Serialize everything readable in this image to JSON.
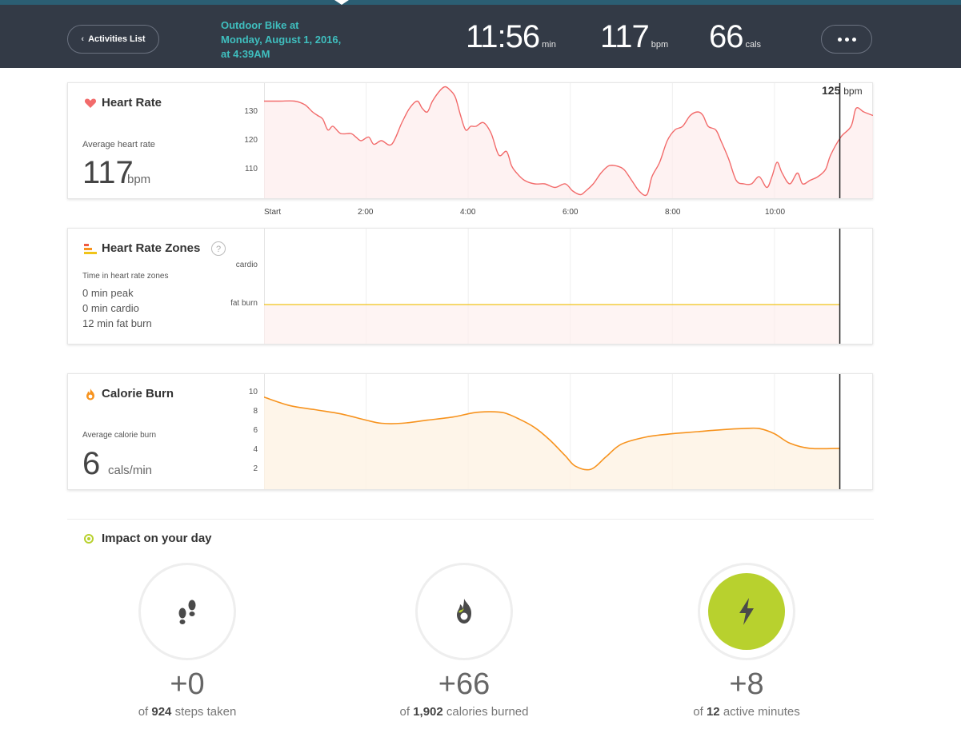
{
  "header": {
    "back_label": "Activities List",
    "title_line1": "Outdoor Bike at",
    "title_line2": "Monday, August 1, 2016,",
    "title_line3": "at 4:39AM",
    "duration": {
      "value": "11:56",
      "unit": "min"
    },
    "heart_rate": {
      "value": "117",
      "unit": "bpm"
    },
    "calories": {
      "value": "66",
      "unit": "cals"
    }
  },
  "heart_rate_card": {
    "title": "Heart Rate",
    "avg_label": "Average heart rate",
    "avg_value": "117",
    "avg_unit": "bpm",
    "y_ticks": [
      "130",
      "120",
      "110"
    ],
    "cursor_value": "125",
    "cursor_unit": "bpm",
    "x_ticks": [
      "Start",
      "2:00",
      "4:00",
      "6:00",
      "8:00",
      "10:00"
    ]
  },
  "zones_card": {
    "title": "Heart Rate Zones",
    "help": "?",
    "subtitle": "Time in heart rate zones",
    "lines": [
      "0 min peak",
      "0 min cardio",
      "12 min fat burn"
    ],
    "y_ticks": [
      "cardio",
      "fat burn"
    ]
  },
  "calorie_card": {
    "title": "Calorie Burn",
    "avg_label": "Average calorie burn",
    "avg_value": "6",
    "avg_unit": "cals/min",
    "y_ticks": [
      "10",
      "8",
      "6",
      "4",
      "2"
    ]
  },
  "impact": {
    "title": "Impact on your day",
    "items": [
      {
        "value": "+0",
        "prefix": "of",
        "total": "924",
        "suffix": "steps taken"
      },
      {
        "value": "+66",
        "prefix": "of",
        "total": "1,902",
        "suffix": "calories burned"
      },
      {
        "value": "+8",
        "prefix": "of",
        "total": "12",
        "suffix": "active minutes"
      }
    ]
  },
  "colors": {
    "header_bg": "#333a46",
    "title_teal": "#3fbfbf",
    "heart_line": "#f26b6b",
    "zone_line": "#f0c419",
    "calorie_line": "#f7931e",
    "active_green": "#b8d12e"
  },
  "chart_data": [
    {
      "type": "line",
      "name": "heart rate",
      "x_unit": "minutes",
      "xlim": [
        0,
        11.93
      ],
      "ylim": [
        103,
        135
      ],
      "x_ticks": [
        "Start",
        "2:00",
        "4:00",
        "6:00",
        "8:00",
        "10:00"
      ],
      "y_ticks": [
        110,
        120,
        130
      ],
      "cursor": {
        "x": 11.28,
        "y": 125
      },
      "x": [
        0,
        0.3,
        0.6,
        0.8,
        0.95,
        1.05,
        1.15,
        1.25,
        1.35,
        1.5,
        1.7,
        1.8,
        1.9,
        2.05,
        2.15,
        2.3,
        2.5,
        2.7,
        2.85,
        3.0,
        3.1,
        3.2,
        3.3,
        3.45,
        3.55,
        3.65,
        3.75,
        3.85,
        3.95,
        4.05,
        4.15,
        4.3,
        4.45,
        4.6,
        4.75,
        4.85,
        4.95,
        5.1,
        5.3,
        5.5,
        5.7,
        5.9,
        6.05,
        6.2,
        6.3,
        6.45,
        6.6,
        6.75,
        6.9,
        7.05,
        7.2,
        7.35,
        7.5,
        7.6,
        7.75,
        7.9,
        8.05,
        8.2,
        8.35,
        8.5,
        8.6,
        8.7,
        8.85,
        8.95,
        9.1,
        9.25,
        9.4,
        9.55,
        9.7,
        9.85,
        9.95,
        10.05,
        10.15,
        10.3,
        10.45,
        10.55,
        10.7,
        10.85,
        11.0,
        11.1,
        11.3,
        11.5,
        11.6,
        11.75,
        11.93
      ],
      "y": [
        130,
        130,
        130,
        129,
        127,
        126,
        125,
        122,
        123,
        121,
        121,
        120,
        119,
        120,
        118,
        119,
        118,
        124,
        128,
        130,
        128,
        127,
        130,
        133,
        134,
        133,
        131,
        126,
        122,
        123,
        123,
        124,
        121,
        115,
        116,
        112,
        110,
        108,
        107,
        107,
        106,
        107,
        105,
        104,
        105,
        107,
        110,
        112,
        112,
        111,
        108,
        105,
        104,
        109,
        113,
        119,
        122,
        123,
        126,
        127,
        126,
        123,
        122,
        119,
        114,
        108,
        107,
        107,
        109,
        106,
        109,
        113,
        110,
        107,
        110,
        107,
        108,
        109,
        111,
        115,
        120,
        123,
        128,
        127,
        126
      ]
    },
    {
      "type": "line",
      "name": "heart rate zones",
      "x_unit": "minutes",
      "xlim": [
        0,
        11.93
      ],
      "y_categories": [
        "fat burn",
        "cardio"
      ],
      "x": [
        0,
        11.28
      ],
      "y": [
        "fat burn",
        "fat burn"
      ]
    },
    {
      "type": "area",
      "name": "calorie burn",
      "x_unit": "minutes",
      "xlim": [
        0,
        11.93
      ],
      "ylim": [
        0,
        11
      ],
      "y_ticks": [
        2,
        4,
        6,
        8,
        10
      ],
      "x": [
        0,
        0.5,
        1.0,
        1.5,
        2.0,
        2.3,
        2.7,
        3.2,
        3.7,
        4.1,
        4.4,
        4.7,
        5.0,
        5.3,
        5.6,
        5.9,
        6.1,
        6.4,
        6.7,
        7.0,
        7.5,
        8.0,
        8.5,
        9.0,
        9.4,
        9.7,
        10.0,
        10.3,
        10.7,
        11.28
      ],
      "y": [
        8.8,
        8.0,
        7.6,
        7.2,
        6.6,
        6.3,
        6.3,
        6.6,
        6.9,
        7.3,
        7.4,
        7.3,
        6.7,
        5.9,
        4.7,
        3.2,
        2.2,
        1.9,
        3.1,
        4.3,
        5.0,
        5.3,
        5.5,
        5.7,
        5.8,
        5.8,
        5.3,
        4.4,
        3.9,
        3.9
      ]
    }
  ]
}
